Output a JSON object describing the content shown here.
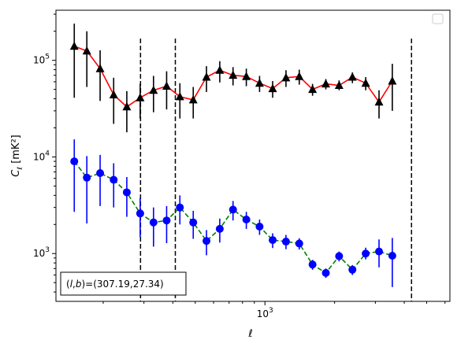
{
  "chart_data": {
    "type": "scatter",
    "title": "",
    "xlabel": "ℓ",
    "ylabel": "C_ℓ [mK²]",
    "xscale": "log",
    "yscale": "log",
    "xlim": [
      125,
      6300
    ],
    "ylim": [
      320,
      330000
    ],
    "grid": false,
    "legend": "empty box, upper-right",
    "x_tick_labels": [
      {
        "value": 1000,
        "label": "10^3"
      }
    ],
    "y_tick_labels": [
      {
        "value": 1000,
        "label": "10^3"
      },
      {
        "value": 10000,
        "label": "10^4"
      },
      {
        "value": 100000,
        "label": "10^5"
      }
    ],
    "vlines": [
      290,
      410,
      4300
    ],
    "annotation": "(l,b)=(307.19,27.34)",
    "series": [
      {
        "color": "#ff0000",
        "marker_color": "#000000",
        "marker": "triangle",
        "linestyle": "solid",
        "errorbar_color": "#000000",
        "points": [
          {
            "x": 150,
            "y": 140000,
            "lo": 41000,
            "hi": 240000
          },
          {
            "x": 170,
            "y": 125000,
            "lo": 53000,
            "hi": 200000
          },
          {
            "x": 194,
            "y": 82000,
            "lo": 38000,
            "hi": 127000
          },
          {
            "x": 222,
            "y": 44000,
            "lo": 22000,
            "hi": 66000
          },
          {
            "x": 253,
            "y": 33000,
            "lo": 18000,
            "hi": 48000
          },
          {
            "x": 289,
            "y": 41000,
            "lo": 25000,
            "hi": 57000
          },
          {
            "x": 330,
            "y": 49000,
            "lo": 29000,
            "hi": 69000
          },
          {
            "x": 376,
            "y": 54000,
            "lo": 31000,
            "hi": 77000
          },
          {
            "x": 429,
            "y": 42000,
            "lo": 25000,
            "hi": 58000
          },
          {
            "x": 490,
            "y": 39000,
            "lo": 25000,
            "hi": 53000
          },
          {
            "x": 559,
            "y": 67000,
            "lo": 47000,
            "hi": 87000
          },
          {
            "x": 638,
            "y": 79000,
            "lo": 59000,
            "hi": 98000
          },
          {
            "x": 728,
            "y": 70000,
            "lo": 55000,
            "hi": 85000
          },
          {
            "x": 831,
            "y": 68000,
            "lo": 54000,
            "hi": 82000
          },
          {
            "x": 948,
            "y": 58000,
            "lo": 47000,
            "hi": 69000
          },
          {
            "x": 1080,
            "y": 51000,
            "lo": 41000,
            "hi": 61000
          },
          {
            "x": 1233,
            "y": 66000,
            "lo": 53000,
            "hi": 79000
          },
          {
            "x": 1407,
            "y": 68000,
            "lo": 56000,
            "hi": 80000
          },
          {
            "x": 1606,
            "y": 50000,
            "lo": 43000,
            "hi": 57000
          },
          {
            "x": 1833,
            "y": 57000,
            "lo": 50000,
            "hi": 64000
          },
          {
            "x": 2092,
            "y": 55000,
            "lo": 49000,
            "hi": 62000
          },
          {
            "x": 2388,
            "y": 67000,
            "lo": 58000,
            "hi": 75000
          },
          {
            "x": 2726,
            "y": 58000,
            "lo": 49000,
            "hi": 67000
          },
          {
            "x": 3112,
            "y": 37000,
            "lo": 25000,
            "hi": 49000
          },
          {
            "x": 3552,
            "y": 61000,
            "lo": 30000,
            "hi": 92000
          }
        ]
      },
      {
        "color": "#008000",
        "marker_color": "#0000ff",
        "marker": "circle",
        "linestyle": "dashed",
        "errorbar_color": "#0000ff",
        "points": [
          {
            "x": 150,
            "y": 9000,
            "lo": 2700,
            "hi": 15200
          },
          {
            "x": 170,
            "y": 6100,
            "lo": 2050,
            "hi": 10200
          },
          {
            "x": 194,
            "y": 6800,
            "lo": 3100,
            "hi": 10500
          },
          {
            "x": 222,
            "y": 5800,
            "lo": 3000,
            "hi": 8600
          },
          {
            "x": 253,
            "y": 4300,
            "lo": 2400,
            "hi": 6200
          },
          {
            "x": 289,
            "y": 2600,
            "lo": 1480,
            "hi": 3750
          },
          {
            "x": 330,
            "y": 2100,
            "lo": 1180,
            "hi": 3000
          },
          {
            "x": 376,
            "y": 2200,
            "lo": 1280,
            "hi": 3100
          },
          {
            "x": 429,
            "y": 3000,
            "lo": 2000,
            "hi": 4000
          },
          {
            "x": 490,
            "y": 2100,
            "lo": 1420,
            "hi": 2770
          },
          {
            "x": 559,
            "y": 1350,
            "lo": 960,
            "hi": 1750
          },
          {
            "x": 638,
            "y": 1800,
            "lo": 1300,
            "hi": 2300
          },
          {
            "x": 728,
            "y": 2850,
            "lo": 2200,
            "hi": 3500
          },
          {
            "x": 831,
            "y": 2250,
            "lo": 1800,
            "hi": 2700
          },
          {
            "x": 948,
            "y": 1900,
            "lo": 1560,
            "hi": 2250
          },
          {
            "x": 1080,
            "y": 1380,
            "lo": 1140,
            "hi": 1620
          },
          {
            "x": 1233,
            "y": 1330,
            "lo": 1110,
            "hi": 1560
          },
          {
            "x": 1407,
            "y": 1270,
            "lo": 1100,
            "hi": 1440
          },
          {
            "x": 1606,
            "y": 770,
            "lo": 680,
            "hi": 860
          },
          {
            "x": 1833,
            "y": 630,
            "lo": 560,
            "hi": 700
          },
          {
            "x": 2092,
            "y": 940,
            "lo": 830,
            "hi": 1050
          },
          {
            "x": 2388,
            "y": 680,
            "lo": 600,
            "hi": 760
          },
          {
            "x": 2726,
            "y": 1000,
            "lo": 870,
            "hi": 1150
          },
          {
            "x": 3112,
            "y": 1050,
            "lo": 720,
            "hi": 1400
          },
          {
            "x": 3552,
            "y": 950,
            "lo": 450,
            "hi": 1450
          }
        ]
      }
    ]
  }
}
